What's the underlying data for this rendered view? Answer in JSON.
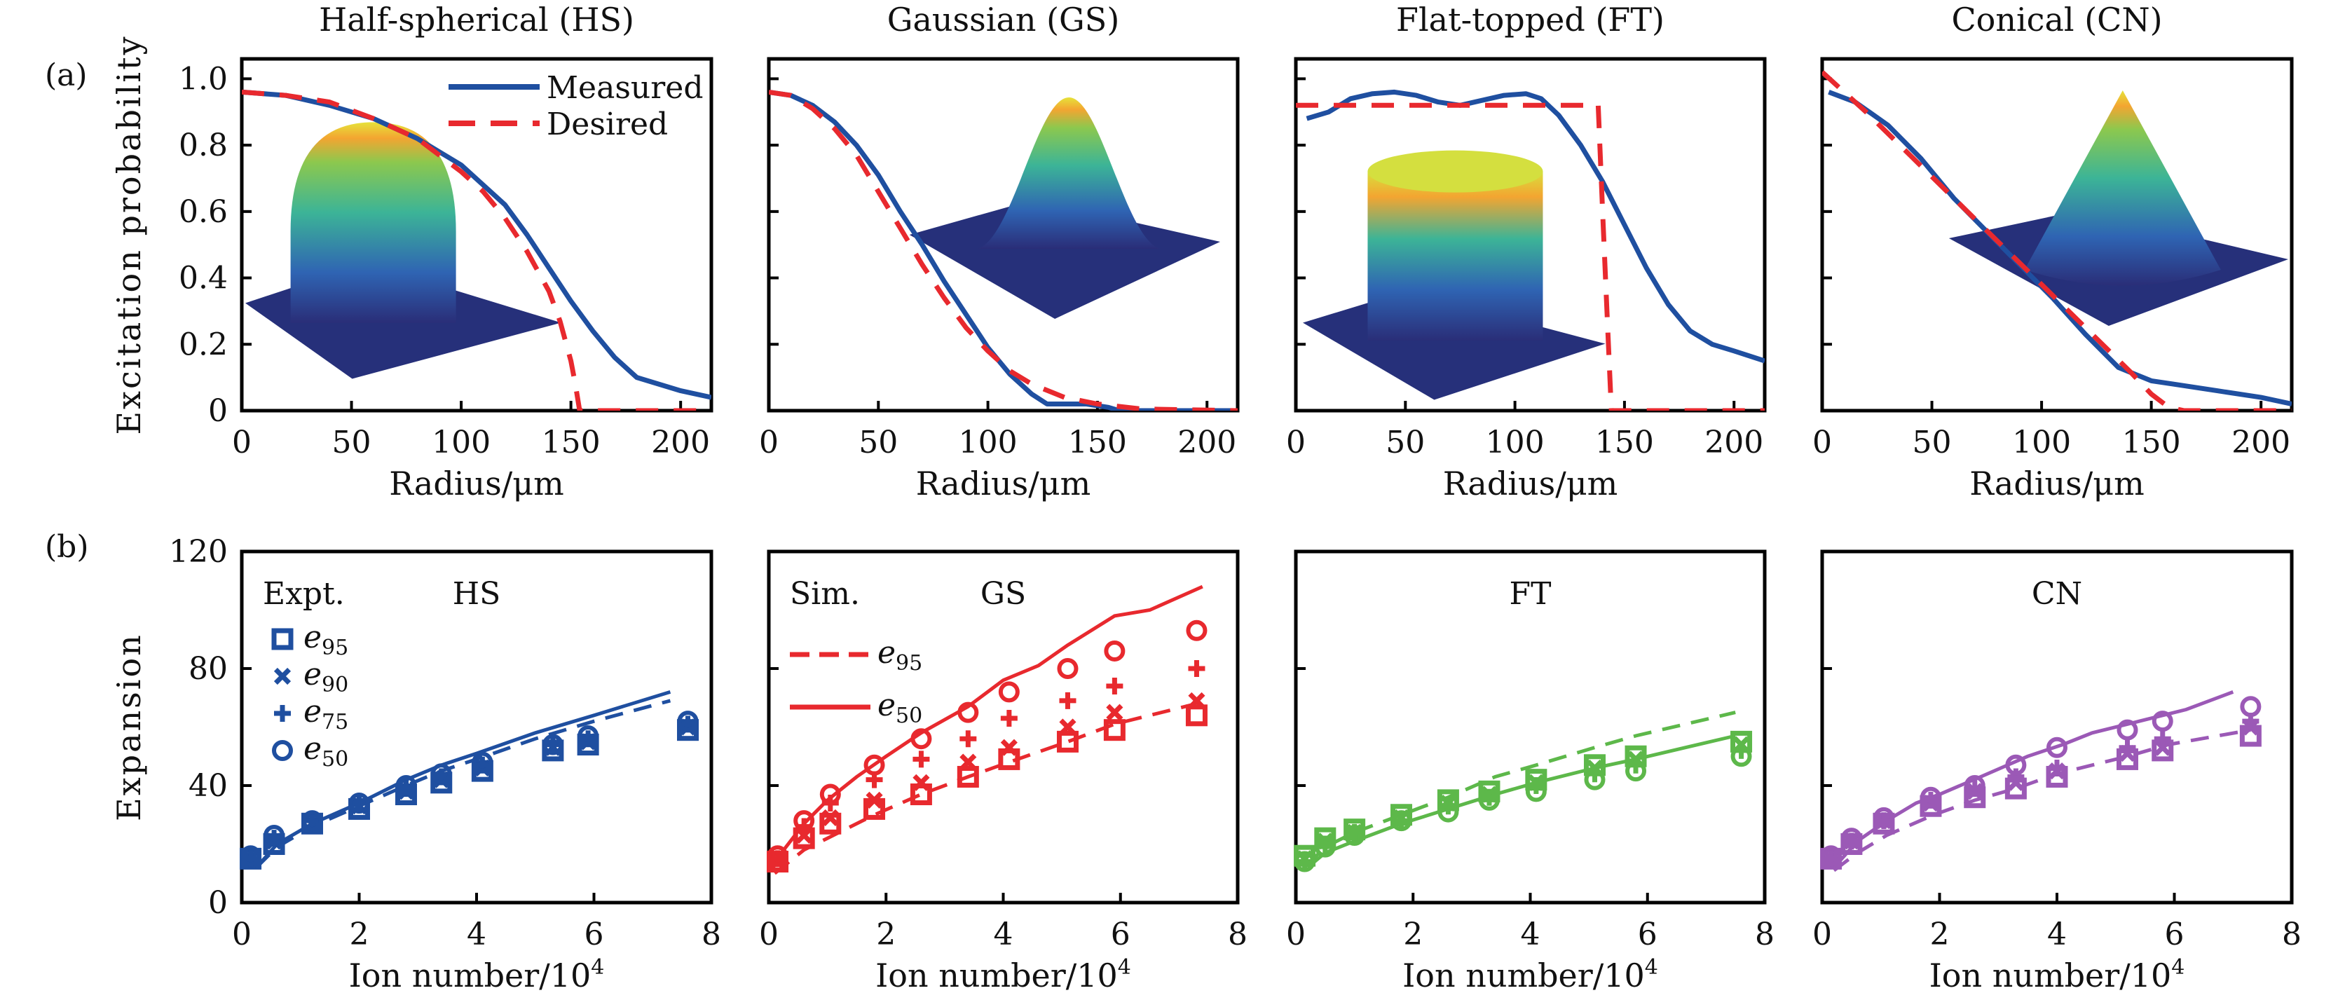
{
  "figure": {
    "row_labels": [
      "(a)",
      "(b)"
    ]
  },
  "chart_data": [
    {
      "type": "line",
      "row": "a",
      "title": "Half-spherical (HS)",
      "xlabel": "Radius/μm",
      "ylabel": "Excitation probability",
      "xlim": [
        0,
        214
      ],
      "ylim": [
        0,
        1.06
      ],
      "xticks": [
        0,
        50,
        100,
        150,
        200
      ],
      "yticks": [
        0,
        0.2,
        0.4,
        0.6,
        0.8,
        1.0
      ],
      "ytick_labels": [
        "0",
        "0.2",
        "0.4",
        "0.6",
        "0.8",
        "1.0"
      ],
      "show_ytick_labels": true,
      "legend": {
        "position": "top-right",
        "entries": [
          "Measured",
          "Desired"
        ]
      },
      "inset": "half-sphere 3D surface",
      "series": [
        {
          "name": "Measured",
          "style": "solid",
          "color": "#1f4fa0",
          "x": [
            0,
            20,
            40,
            60,
            80,
            100,
            120,
            130,
            140,
            150,
            160,
            170,
            180,
            190,
            200,
            214
          ],
          "y": [
            0.96,
            0.95,
            0.92,
            0.88,
            0.82,
            0.74,
            0.62,
            0.53,
            0.43,
            0.33,
            0.24,
            0.16,
            0.1,
            0.08,
            0.06,
            0.04
          ]
        },
        {
          "name": "Desired",
          "style": "dashed",
          "color": "#e8292e",
          "x": [
            0,
            20,
            40,
            60,
            80,
            100,
            110,
            120,
            130,
            140,
            145,
            150,
            152,
            154,
            214
          ],
          "y": [
            0.96,
            0.95,
            0.93,
            0.88,
            0.82,
            0.72,
            0.66,
            0.58,
            0.48,
            0.36,
            0.27,
            0.15,
            0.08,
            0.0,
            0.0
          ]
        }
      ]
    },
    {
      "type": "line",
      "row": "a",
      "title": "Gaussian (GS)",
      "xlabel": "Radius/μm",
      "xlim": [
        0,
        214
      ],
      "ylim": [
        0,
        1.06
      ],
      "xticks": [
        0,
        50,
        100,
        150,
        200
      ],
      "yticks": [
        0,
        0.2,
        0.4,
        0.6,
        0.8,
        1.0
      ],
      "show_ytick_labels": false,
      "inset": "Gaussian 3D surface",
      "series": [
        {
          "name": "Measured",
          "style": "solid",
          "color": "#1f4fa0",
          "x": [
            0,
            10,
            20,
            30,
            40,
            50,
            60,
            70,
            80,
            90,
            100,
            110,
            120,
            127,
            145,
            155,
            160,
            214
          ],
          "y": [
            0.96,
            0.95,
            0.92,
            0.87,
            0.8,
            0.71,
            0.6,
            0.5,
            0.39,
            0.29,
            0.19,
            0.11,
            0.05,
            0.02,
            0.02,
            0.01,
            0.0,
            0.0
          ]
        },
        {
          "name": "Desired",
          "style": "dashed",
          "color": "#e8292e",
          "x": [
            0,
            10,
            20,
            30,
            40,
            50,
            60,
            70,
            80,
            90,
            100,
            110,
            120,
            135,
            150,
            170,
            214
          ],
          "y": [
            0.96,
            0.95,
            0.91,
            0.85,
            0.77,
            0.66,
            0.55,
            0.44,
            0.34,
            0.25,
            0.18,
            0.12,
            0.08,
            0.04,
            0.02,
            0.005,
            0.0
          ]
        }
      ]
    },
    {
      "type": "line",
      "row": "a",
      "title": "Flat-topped (FT)",
      "xlabel": "Radius/μm",
      "xlim": [
        0,
        214
      ],
      "ylim": [
        0,
        1.06
      ],
      "xticks": [
        0,
        50,
        100,
        150,
        200
      ],
      "yticks": [
        0,
        0.2,
        0.4,
        0.6,
        0.8,
        1.0
      ],
      "show_ytick_labels": false,
      "inset": "flat-topped cylinder 3D surface",
      "series": [
        {
          "name": "Measured",
          "style": "solid",
          "color": "#1f4fa0",
          "x": [
            5,
            15,
            25,
            35,
            45,
            55,
            65,
            75,
            85,
            95,
            105,
            112,
            120,
            130,
            140,
            150,
            160,
            170,
            180,
            190,
            200,
            214
          ],
          "y": [
            0.88,
            0.9,
            0.94,
            0.955,
            0.96,
            0.95,
            0.93,
            0.92,
            0.935,
            0.95,
            0.955,
            0.94,
            0.89,
            0.8,
            0.69,
            0.56,
            0.43,
            0.32,
            0.24,
            0.2,
            0.18,
            0.15
          ]
        },
        {
          "name": "Desired",
          "style": "dashed",
          "color": "#e8292e",
          "x": [
            0,
            138,
            140,
            142,
            144,
            214
          ],
          "y": [
            0.92,
            0.92,
            0.6,
            0.3,
            0.0,
            0.0
          ]
        }
      ]
    },
    {
      "type": "line",
      "row": "a",
      "title": "Conical (CN)",
      "xlabel": "Radius/μm",
      "xlim": [
        0,
        214
      ],
      "ylim": [
        0,
        1.06
      ],
      "xticks": [
        0,
        50,
        100,
        150,
        200
      ],
      "yticks": [
        0,
        0.2,
        0.4,
        0.6,
        0.8,
        1.0
      ],
      "show_ytick_labels": false,
      "inset": "conical 3D surface",
      "series": [
        {
          "name": "Measured",
          "style": "solid",
          "color": "#1f4fa0",
          "x": [
            3,
            15,
            30,
            45,
            60,
            75,
            90,
            105,
            120,
            135,
            150,
            160,
            180,
            200,
            214
          ],
          "y": [
            0.96,
            0.93,
            0.86,
            0.76,
            0.64,
            0.54,
            0.44,
            0.34,
            0.23,
            0.13,
            0.09,
            0.08,
            0.06,
            0.04,
            0.02
          ]
        },
        {
          "name": "Desired",
          "style": "dashed",
          "color": "#e8292e",
          "x": [
            0,
            20,
            40,
            60,
            80,
            100,
            120,
            140,
            150,
            158,
            165,
            214
          ],
          "y": [
            1.02,
            0.9,
            0.77,
            0.64,
            0.51,
            0.38,
            0.25,
            0.12,
            0.05,
            0.01,
            0.0,
            0.0
          ]
        }
      ]
    },
    {
      "type": "line+scatter",
      "row": "b",
      "title": "HS",
      "xlabel": "Ion number/10^4",
      "ylabel": "Expansion",
      "xlim": [
        0,
        8
      ],
      "ylim": [
        0,
        120
      ],
      "xticks": [
        0,
        2,
        4,
        6,
        8
      ],
      "yticks": [
        0,
        40,
        80,
        120
      ],
      "show_ytick_labels": true,
      "color": "#1f4fa0",
      "legend": {
        "position": "top-left",
        "heading": "Expt.",
        "entries": [
          {
            "marker": "square",
            "label": "e",
            "sub": "95"
          },
          {
            "marker": "x",
            "label": "e",
            "sub": "90"
          },
          {
            "marker": "plus",
            "label": "e",
            "sub": "75"
          },
          {
            "marker": "circle",
            "label": "e",
            "sub": "50"
          }
        ]
      },
      "lines": [
        {
          "name": "e50 sim",
          "style": "solid",
          "x": [
            0.25,
            0.6,
            1.2,
            2.0,
            2.8,
            3.4,
            4.0,
            5.0,
            6.0,
            7.3
          ],
          "y": [
            12,
            20,
            27,
            34,
            42,
            47,
            51,
            58,
            64,
            72
          ]
        },
        {
          "name": "e95 sim",
          "style": "dashed",
          "x": [
            0.25,
            0.6,
            1.2,
            2.0,
            2.8,
            3.4,
            4.0,
            5.0,
            6.0,
            7.3
          ],
          "y": [
            12,
            19,
            26,
            33,
            40,
            45,
            49,
            56,
            62,
            69
          ]
        }
      ],
      "points": {
        "x": [
          0.15,
          0.55,
          1.2,
          2.0,
          2.8,
          3.4,
          4.1,
          5.3,
          5.9,
          7.6
        ],
        "e95": [
          15,
          20,
          27,
          32,
          37,
          41,
          45,
          52,
          54,
          59
        ],
        "e90": [
          15,
          21,
          27,
          33,
          38,
          42,
          46,
          53,
          55,
          60
        ],
        "e75": [
          15,
          22,
          28,
          34,
          39,
          43,
          47,
          54,
          56,
          61
        ],
        "e50": [
          16,
          23,
          28,
          34,
          40,
          44,
          48,
          54,
          57,
          62
        ]
      }
    },
    {
      "type": "line+scatter",
      "row": "b",
      "title": "GS",
      "xlabel": "Ion number/10^4",
      "xlim": [
        0,
        8
      ],
      "ylim": [
        0,
        120
      ],
      "xticks": [
        0,
        2,
        4,
        6,
        8
      ],
      "yticks": [
        0,
        40,
        80,
        120
      ],
      "show_ytick_labels": false,
      "color": "#e8292e",
      "legend": {
        "position": "top-left",
        "heading": "Sim.",
        "entries": [
          {
            "style": "dashed",
            "label": "e",
            "sub": "95"
          },
          {
            "style": "solid",
            "label": "e",
            "sub": "50"
          }
        ]
      },
      "lines": [
        {
          "name": "e50 sim",
          "style": "solid",
          "x": [
            0.1,
            0.6,
            1.0,
            1.5,
            2.0,
            2.6,
            3.4,
            4.0,
            4.6,
            5.1,
            5.9,
            6.5,
            7.4
          ],
          "y": [
            14,
            27,
            35,
            43,
            50,
            58,
            67,
            76,
            81,
            88,
            98,
            100,
            108
          ]
        },
        {
          "name": "e95 sim",
          "style": "dashed",
          "x": [
            0.1,
            0.6,
            1.0,
            1.8,
            2.6,
            3.4,
            4.1,
            5.1,
            5.9,
            7.3
          ],
          "y": [
            10,
            18,
            22,
            30,
            37,
            43,
            48,
            55,
            61,
            68
          ]
        }
      ],
      "points": {
        "x": [
          0.15,
          0.6,
          1.05,
          1.8,
          2.6,
          3.4,
          4.1,
          5.1,
          5.9,
          7.3
        ],
        "e95": [
          14,
          22,
          27,
          32,
          37,
          43,
          49,
          55,
          59,
          64
        ],
        "e90": [
          14,
          23,
          29,
          35,
          41,
          48,
          53,
          60,
          65,
          69
        ],
        "e75": [
          15,
          26,
          34,
          42,
          49,
          56,
          63,
          69,
          74,
          80
        ],
        "e50": [
          16,
          28,
          37,
          47,
          56,
          65,
          72,
          80,
          86,
          93
        ]
      }
    },
    {
      "type": "line+scatter",
      "row": "b",
      "title": "FT",
      "xlabel": "Ion number/10^4",
      "xlim": [
        0,
        8
      ],
      "ylim": [
        0,
        120
      ],
      "xticks": [
        0,
        2,
        4,
        6,
        8
      ],
      "yticks": [
        0,
        40,
        80,
        120
      ],
      "show_ytick_labels": false,
      "color": "#5db84a",
      "lines": [
        {
          "name": "e50 sim",
          "style": "solid",
          "x": [
            0.2,
            0.5,
            1.0,
            1.8,
            2.6,
            3.4,
            4.1,
            5.1,
            5.8,
            7.5
          ],
          "y": [
            12,
            17,
            21,
            27,
            32,
            37,
            41,
            46,
            49,
            57
          ]
        },
        {
          "name": "e95 sim",
          "style": "dashed",
          "x": [
            0.2,
            0.5,
            1.0,
            1.8,
            2.6,
            3.4,
            4.1,
            5.1,
            5.8,
            7.5
          ],
          "y": [
            13,
            19,
            24,
            30,
            36,
            43,
            47,
            53,
            57,
            65
          ]
        }
      ],
      "points": {
        "x": [
          0.15,
          0.5,
          1.0,
          1.8,
          2.6,
          3.3,
          4.1,
          5.1,
          5.8,
          7.6
        ],
        "e95": [
          16,
          22,
          25,
          30,
          35,
          38,
          42,
          47,
          50,
          55
        ],
        "e90": [
          15,
          21,
          24,
          29,
          34,
          37,
          41,
          46,
          49,
          54
        ],
        "e75": [
          14,
          20,
          24,
          28,
          33,
          36,
          40,
          44,
          47,
          52
        ],
        "e50": [
          14,
          19,
          23,
          28,
          31,
          35,
          38,
          42,
          45,
          50
        ]
      }
    },
    {
      "type": "line+scatter",
      "row": "b",
      "title": "CN",
      "xlabel": "Ion number/10^4",
      "xlim": [
        0,
        8
      ],
      "ylim": [
        0,
        120
      ],
      "xticks": [
        0,
        2,
        4,
        6,
        8
      ],
      "yticks": [
        0,
        40,
        80,
        120
      ],
      "show_ytick_labels": false,
      "color": "#9b59b6",
      "lines": [
        {
          "name": "e50 sim",
          "style": "solid",
          "x": [
            0.2,
            0.6,
            1.1,
            1.6,
            2.0,
            2.7,
            3.5,
            4.1,
            4.6,
            5.4,
            6.2,
            7.0
          ],
          "y": [
            12,
            21,
            28,
            34,
            37,
            43,
            50,
            54,
            58,
            62,
            66,
            72
          ]
        },
        {
          "name": "e95 sim",
          "style": "dashed",
          "x": [
            0.2,
            0.6,
            1.1,
            1.9,
            2.6,
            3.3,
            4.0,
            5.2,
            5.9,
            7.3
          ],
          "y": [
            11,
            17,
            23,
            30,
            35,
            39,
            44,
            50,
            54,
            59
          ]
        }
      ],
      "points": {
        "x": [
          0.15,
          0.5,
          1.05,
          1.85,
          2.6,
          3.3,
          4.0,
          5.2,
          5.8,
          7.3
        ],
        "e95": [
          15,
          20,
          27,
          33,
          36,
          39,
          43,
          49,
          52,
          57
        ],
        "e90": [
          15,
          21,
          28,
          34,
          38,
          41,
          45,
          51,
          53,
          60
        ],
        "e75": [
          15,
          21,
          28,
          35,
          39,
          43,
          46,
          53,
          56,
          62
        ],
        "e50": [
          16,
          22,
          29,
          36,
          40,
          47,
          53,
          59,
          62,
          67
        ]
      }
    }
  ]
}
